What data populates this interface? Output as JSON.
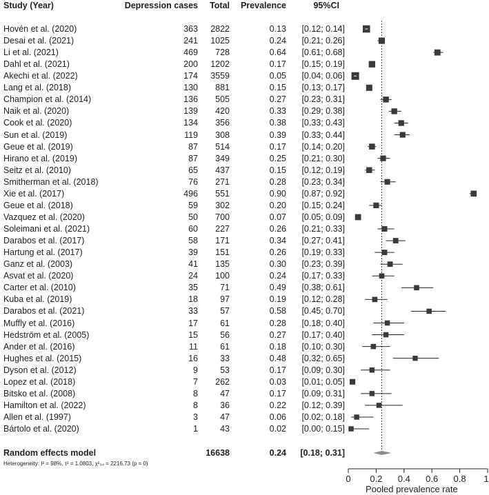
{
  "chart_data": {
    "type": "forest",
    "headers": {
      "study": "Study (Year)",
      "cases": "Depression cases",
      "total": "Total",
      "prevalence": "Prevalence",
      "ci": "95%CI"
    },
    "studies": [
      {
        "study": "Hovén  et al. (2020)",
        "cases": 363,
        "total": 2822,
        "prev": "0.13",
        "ci": "[0.12; 0.14]",
        "est": 0.13,
        "lo": 0.12,
        "hi": 0.14
      },
      {
        "study": "Desai et al. (2021)",
        "cases": 241,
        "total": 1025,
        "prev": "0.24",
        "ci": "[0.21; 0.26]",
        "est": 0.24,
        "lo": 0.21,
        "hi": 0.26
      },
      {
        "study": "Li et al. (2021)",
        "cases": 469,
        "total": 728,
        "prev": "0.64",
        "ci": "[0.61; 0.68]",
        "est": 0.64,
        "lo": 0.61,
        "hi": 0.68
      },
      {
        "study": "Dahl et al. (2021)",
        "cases": 200,
        "total": 1202,
        "prev": "0.17",
        "ci": "[0.15; 0.19]",
        "est": 0.17,
        "lo": 0.15,
        "hi": 0.19
      },
      {
        "study": "Akechi et al. (2022)",
        "cases": 174,
        "total": 3559,
        "prev": "0.05",
        "ci": "[0.04; 0.06]",
        "est": 0.05,
        "lo": 0.04,
        "hi": 0.06
      },
      {
        "study": "Lang et al. (2018)",
        "cases": 130,
        "total": 881,
        "prev": "0.15",
        "ci": "[0.13; 0.17]",
        "est": 0.15,
        "lo": 0.13,
        "hi": 0.17
      },
      {
        "study": "Champion et al. (2014)",
        "cases": 136,
        "total": 505,
        "prev": "0.27",
        "ci": "[0.23; 0.31]",
        "est": 0.27,
        "lo": 0.23,
        "hi": 0.31
      },
      {
        "study": "Naik et al. (2020)",
        "cases": 139,
        "total": 420,
        "prev": "0.33",
        "ci": "[0.29; 0.38]",
        "est": 0.33,
        "lo": 0.29,
        "hi": 0.38
      },
      {
        "study": "Cook et al. (2020)",
        "cases": 134,
        "total": 356,
        "prev": "0.38",
        "ci": "[0.33; 0.43]",
        "est": 0.38,
        "lo": 0.33,
        "hi": 0.43
      },
      {
        "study": "Sun et al. (2019)",
        "cases": 119,
        "total": 308,
        "prev": "0.39",
        "ci": "[0.33; 0.44]",
        "est": 0.39,
        "lo": 0.33,
        "hi": 0.44
      },
      {
        "study": "Geue et al. (2019)",
        "cases": 87,
        "total": 514,
        "prev": "0.17",
        "ci": "[0.14; 0.20]",
        "est": 0.17,
        "lo": 0.14,
        "hi": 0.2
      },
      {
        "study": "Hirano et al. (2019)",
        "cases": 87,
        "total": 349,
        "prev": "0.25",
        "ci": "[0.21; 0.30]",
        "est": 0.25,
        "lo": 0.21,
        "hi": 0.3
      },
      {
        "study": "Seitz et al. (2010)",
        "cases": 65,
        "total": 437,
        "prev": "0.15",
        "ci": "[0.12; 0.19]",
        "est": 0.15,
        "lo": 0.12,
        "hi": 0.19
      },
      {
        "study": "Smitherman et al. (2018)",
        "cases": 76,
        "total": 271,
        "prev": "0.28",
        "ci": "[0.23; 0.34]",
        "est": 0.28,
        "lo": 0.23,
        "hi": 0.34
      },
      {
        "study": "Xie et al. (2017)",
        "cases": 496,
        "total": 551,
        "prev": "0.90",
        "ci": "[0.87; 0.92]",
        "est": 0.9,
        "lo": 0.87,
        "hi": 0.92
      },
      {
        "study": "Geue et al. (2018)",
        "cases": 59,
        "total": 302,
        "prev": "0.20",
        "ci": "[0.15; 0.24]",
        "est": 0.2,
        "lo": 0.15,
        "hi": 0.24
      },
      {
        "study": "Vazquez et al. (2020)",
        "cases": 50,
        "total": 700,
        "prev": "0.07",
        "ci": "[0.05; 0.09]",
        "est": 0.07,
        "lo": 0.05,
        "hi": 0.09
      },
      {
        "study": "Soleimani et al. (2021)",
        "cases": 60,
        "total": 227,
        "prev": "0.26",
        "ci": "[0.21; 0.33]",
        "est": 0.26,
        "lo": 0.21,
        "hi": 0.33
      },
      {
        "study": "Darabos et al. (2017)",
        "cases": 58,
        "total": 171,
        "prev": "0.34",
        "ci": "[0.27; 0.41]",
        "est": 0.34,
        "lo": 0.27,
        "hi": 0.41
      },
      {
        "study": "Hartung et al. (2017)",
        "cases": 39,
        "total": 151,
        "prev": "0.26",
        "ci": "[0.19; 0.33]",
        "est": 0.26,
        "lo": 0.19,
        "hi": 0.33
      },
      {
        "study": "Ganz et al. (2003)",
        "cases": 41,
        "total": 135,
        "prev": "0.30",
        "ci": "[0.23; 0.39]",
        "est": 0.3,
        "lo": 0.23,
        "hi": 0.39
      },
      {
        "study": "Asvat et al. (2020)",
        "cases": 24,
        "total": 100,
        "prev": "0.24",
        "ci": "[0.17; 0.33]",
        "est": 0.24,
        "lo": 0.17,
        "hi": 0.33
      },
      {
        "study": "Carter et al. (2010)",
        "cases": 35,
        "total": 71,
        "prev": "0.49",
        "ci": "[0.38; 0.61]",
        "est": 0.49,
        "lo": 0.38,
        "hi": 0.61
      },
      {
        "study": "Kuba et al. (2019)",
        "cases": 18,
        "total": 97,
        "prev": "0.19",
        "ci": "[0.12; 0.28]",
        "est": 0.19,
        "lo": 0.12,
        "hi": 0.28
      },
      {
        "study": "Darabos et al. (2021)",
        "cases": 33,
        "total": 57,
        "prev": "0.58",
        "ci": "[0.45; 0.70]",
        "est": 0.58,
        "lo": 0.45,
        "hi": 0.7
      },
      {
        "study": "Muffly et al. (2016)",
        "cases": 17,
        "total": 61,
        "prev": "0.28",
        "ci": "[0.18; 0.40]",
        "est": 0.28,
        "lo": 0.18,
        "hi": 0.4
      },
      {
        "study": "Hedström et al. (2005)",
        "cases": 15,
        "total": 56,
        "prev": "0.27",
        "ci": "[0.17; 0.40]",
        "est": 0.27,
        "lo": 0.17,
        "hi": 0.4
      },
      {
        "study": "Ander et al. (2016)",
        "cases": 11,
        "total": 61,
        "prev": "0.18",
        "ci": "[0.10; 0.30]",
        "est": 0.18,
        "lo": 0.1,
        "hi": 0.3
      },
      {
        "study": "Hughes et al. (2015)",
        "cases": 16,
        "total": 33,
        "prev": "0.48",
        "ci": "[0.32; 0.65]",
        "est": 0.48,
        "lo": 0.32,
        "hi": 0.65
      },
      {
        "study": "Dyson et al. (2012)",
        "cases": 9,
        "total": 53,
        "prev": "0.17",
        "ci": "[0.09; 0.30]",
        "est": 0.17,
        "lo": 0.09,
        "hi": 0.3
      },
      {
        "study": "Lopez et al. (2018)",
        "cases": 7,
        "total": 262,
        "prev": "0.03",
        "ci": "[0.01; 0.05]",
        "est": 0.03,
        "lo": 0.01,
        "hi": 0.05
      },
      {
        "study": "Bitsko et al. (2008)",
        "cases": 8,
        "total": 47,
        "prev": "0.17",
        "ci": "[0.09; 0.31]",
        "est": 0.17,
        "lo": 0.09,
        "hi": 0.31
      },
      {
        "study": "Hamilton et al. (2022)",
        "cases": 8,
        "total": 36,
        "prev": "0.22",
        "ci": "[0.12; 0.39]",
        "est": 0.22,
        "lo": 0.12,
        "hi": 0.39
      },
      {
        "study": "Allen et al. (1997)",
        "cases": 3,
        "total": 47,
        "prev": "0.06",
        "ci": "[0.02; 0.18]",
        "est": 0.06,
        "lo": 0.02,
        "hi": 0.18
      },
      {
        "study": "Bártolo et al. (2020)",
        "cases": 1,
        "total": 43,
        "prev": "0.02",
        "ci": "[0.00; 0.15]",
        "est": 0.02,
        "lo": 0.0,
        "hi": 0.15
      }
    ],
    "pooled": {
      "label": "Random effects model",
      "total": "16638",
      "prev": "0.24",
      "ci": "[0.18; 0.31]",
      "est": 0.24,
      "lo": 0.18,
      "hi": 0.31
    },
    "heterogeneity": "Heterogeneity: I² = 98%, τ² = 1.0803, χ²₃₄ = 2216.73 (p = 0)",
    "x_ticks": [
      "0",
      "0.2",
      "0.4",
      "0.6",
      "0.8",
      "1"
    ],
    "xlim": [
      0,
      1
    ],
    "xlabel": "Pooled prevalence rate",
    "colors": {
      "box": "#3a3a3a",
      "diamond": "#8c8c8c",
      "line": "#222222"
    }
  }
}
